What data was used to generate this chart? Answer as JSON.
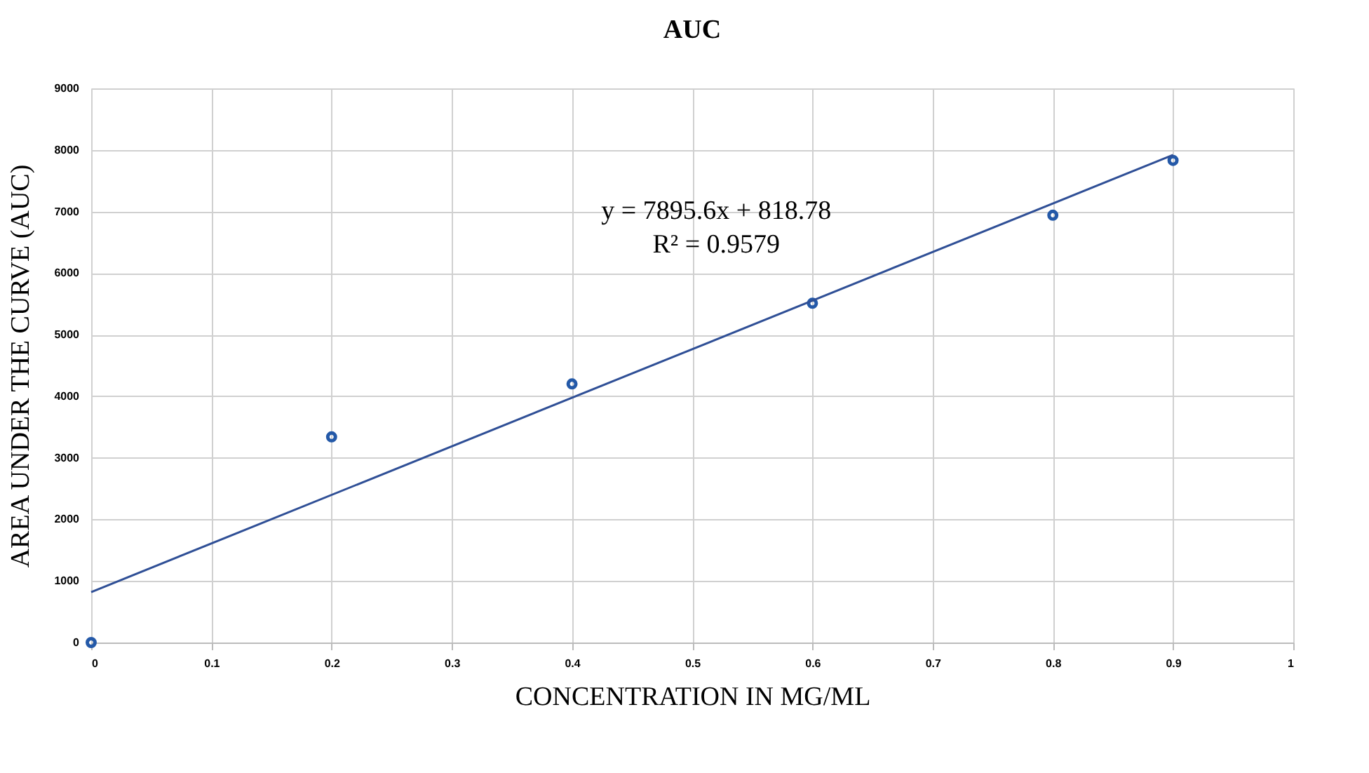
{
  "chart_data": {
    "type": "scatter",
    "title": "AUC",
    "xlabel": "CONCENTRATION IN MG/ML",
    "ylabel": "AREA UNDER THE CURVE (AUC)",
    "xlim": [
      0,
      1
    ],
    "ylim": [
      0,
      9000
    ],
    "xticks": [
      0,
      0.1,
      0.2,
      0.3,
      0.4,
      0.5,
      0.6,
      0.7,
      0.8,
      0.9,
      1
    ],
    "yticks": [
      0,
      1000,
      2000,
      3000,
      4000,
      5000,
      6000,
      7000,
      8000,
      9000
    ],
    "grid": true,
    "marker": "circle",
    "series": [
      {
        "color": "#2459a8",
        "x": [
          0,
          0.2,
          0.4,
          0.6,
          0.8,
          0.9
        ],
        "values": [
          0,
          3340,
          4200,
          5510,
          6940,
          7830
        ]
      },
      {
        "type": "line",
        "color": "#2f4f96",
        "marker": "none",
        "line_style": "solid",
        "x": [
          0,
          0.9
        ],
        "values": [
          820,
          7920
        ]
      }
    ],
    "annotations": [
      "y = 7895.6x + 818.78",
      "R² = 0.9579"
    ]
  }
}
